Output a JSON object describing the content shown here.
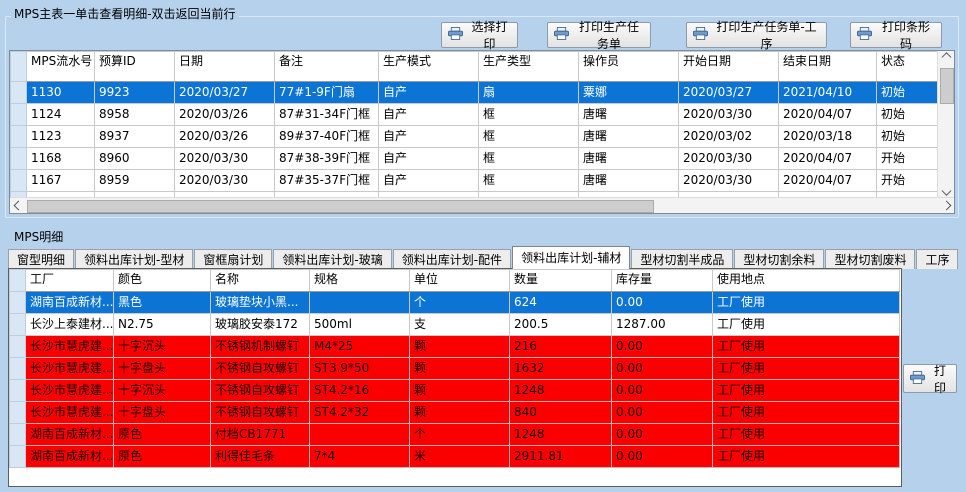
{
  "colors": {
    "page_background": "#b5d1ec",
    "selected_row": "#0b74d4",
    "alert_row": "#fb0000",
    "printer_icon_blue": "#6f9bd1"
  },
  "main_panel": {
    "title": "MPS主表一单击查看明细-双击返回当前行",
    "buttons": [
      {
        "icon": "printer-icon",
        "label": "选择打印"
      },
      {
        "icon": "printer-icon",
        "label": "打印生产任务单"
      },
      {
        "icon": "printer-icon",
        "label": "打印生产任务单-工序"
      },
      {
        "icon": "printer-icon",
        "label": "打印条形码"
      }
    ],
    "table": {
      "columns": [
        "MPS流水号",
        "预算ID",
        "日期",
        "备注",
        "生产模式",
        "生产类型",
        "操作员",
        "开始日期",
        "结束日期",
        "状态"
      ],
      "rows": [
        {
          "state": "selected",
          "cells": [
            "1130",
            "9923",
            "2020/03/27",
            "77#1-9F门扇",
            "自产",
            "扇",
            "粟娜",
            "2020/03/27",
            "2021/04/10",
            "初始"
          ]
        },
        {
          "state": "normal",
          "cells": [
            "1124",
            "8958",
            "2020/03/26",
            "87#31-34F门框",
            "自产",
            "框",
            "唐曙",
            "2020/03/30",
            "2020/04/07",
            "初始"
          ]
        },
        {
          "state": "normal",
          "cells": [
            "1123",
            "8937",
            "2020/03/26",
            "89#37-40F门框",
            "自产",
            "框",
            "唐曙",
            "2020/03/02",
            "2020/03/18",
            "初始"
          ]
        },
        {
          "state": "normal",
          "cells": [
            "1168",
            "8960",
            "2020/03/30",
            "87#38-39F门框",
            "自产",
            "框",
            "唐曙",
            "2020/03/30",
            "2020/04/07",
            "开始"
          ]
        },
        {
          "state": "normal",
          "cells": [
            "1167",
            "8959",
            "2020/03/30",
            "87#35-37F门框",
            "自产",
            "框",
            "唐曙",
            "2020/03/30",
            "2020/04/07",
            "开始"
          ]
        },
        {
          "state": "normal",
          "cells": [
            "",
            "",
            "",
            "",
            "",
            "",
            "",
            "",
            "",
            ""
          ]
        }
      ]
    }
  },
  "detail_panel": {
    "title": "MPS明细",
    "tabs": [
      "窗型明细",
      "领料出库计划-型材",
      "窗框扇计划",
      "领料出库计划-玻璃",
      "领料出库计划-配件",
      "领料出库计划-辅材",
      "型材切割半成品",
      "型材切割余料",
      "型材切割废料",
      "工序"
    ],
    "active_tab": "领料出库计划-辅材",
    "active_tab_index": 5,
    "print_button_label": "打印",
    "table": {
      "columns": [
        "工厂",
        "颜色",
        "名称",
        "规格",
        "单位",
        "数量",
        "库存量",
        "使用地点"
      ],
      "rows": [
        {
          "state": "selected",
          "cells": [
            "湖南百成新材...",
            "黑色",
            "玻璃垫块小黑...",
            "",
            "个",
            "624",
            "0.00",
            "工厂使用"
          ]
        },
        {
          "state": "normal",
          "cells": [
            "长沙上泰建材...",
            "N2.75",
            "玻璃胶安泰172",
            "500ml",
            "支",
            "200.5",
            "1287.00",
            "工厂使用"
          ]
        },
        {
          "state": "alert",
          "cells": [
            "长沙市慧虎建...",
            "十字沉头",
            "不锈钢机制螺钉",
            "M4*25",
            "颗",
            "216",
            "0.00",
            "工厂使用"
          ]
        },
        {
          "state": "alert",
          "cells": [
            "长沙市慧虎建...",
            "十字盘头",
            "不锈钢自攻螺钉",
            "ST3.9*50",
            "颗",
            "1632",
            "0.00",
            "工厂使用"
          ]
        },
        {
          "state": "alert",
          "cells": [
            "长沙市慧虎建...",
            "十字沉头",
            "不锈钢自攻螺钉",
            "ST4.2*16",
            "颗",
            "1248",
            "0.00",
            "工厂使用"
          ]
        },
        {
          "state": "alert",
          "cells": [
            "长沙市慧虎建...",
            "十字盘头",
            "不锈钢自攻螺钉",
            "ST4.2*32",
            "颗",
            "840",
            "0.00",
            "工厂使用"
          ]
        },
        {
          "state": "alert",
          "cells": [
            "湖南百成新材...",
            "原色",
            "付档CB1771",
            "",
            "个",
            "1248",
            "0.00",
            "工厂使用"
          ]
        },
        {
          "state": "alert",
          "cells": [
            "湖南百成新材...",
            "原色",
            "利得佳毛条",
            "7*4",
            "米",
            "2911.81",
            "0.00",
            "工厂使用"
          ]
        }
      ]
    }
  }
}
